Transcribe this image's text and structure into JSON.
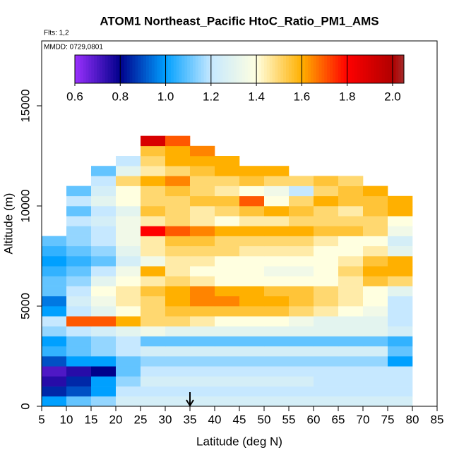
{
  "chart_data": {
    "type": "heatmap",
    "title": "ATOM1 Northeast_Pacific HtoC_Ratio_PM1_AMS",
    "subtitle": "Flts: 1,2",
    "annotation": "MMDD: 0729,0801",
    "x_label": "Latitude (deg N)",
    "y_label": "Altitude (m)",
    "xlim": [
      5,
      85
    ],
    "xticks": [
      5,
      10,
      15,
      20,
      25,
      30,
      35,
      40,
      45,
      50,
      55,
      60,
      65,
      70,
      75,
      80,
      85
    ],
    "ylim": [
      0,
      18240
    ],
    "yticks": [
      0,
      5000,
      10000,
      15000
    ],
    "arrow_x": 35,
    "x_edges": [
      5,
      10,
      15,
      20,
      25,
      30,
      35,
      40,
      45,
      50,
      55,
      60,
      65,
      70,
      75,
      80
    ],
    "y_edges": [
      0,
      500,
      1000,
      1500,
      2000,
      2500,
      3000,
      3500,
      4000,
      4500,
      5000,
      5500,
      6000,
      6500,
      7000,
      7500,
      8000,
      8500,
      9000,
      9500,
      10000,
      10500,
      11000,
      11500,
      12000,
      12500,
      13000,
      13500
    ],
    "z": [
      [
        1.0,
        1.1,
        1.15,
        1.25,
        1.25,
        1.25,
        1.25,
        1.25,
        1.25,
        1.25,
        1.25,
        1.25,
        1.25,
        1.25,
        1.25
      ],
      [
        0.85,
        0.9,
        1.0,
        1.2,
        1.2,
        1.2,
        1.2,
        1.2,
        1.2,
        1.2,
        1.2,
        1.2,
        1.2,
        1.2,
        1.2
      ],
      [
        0.75,
        0.85,
        1.0,
        1.15,
        1.25,
        1.25,
        1.25,
        1.25,
        1.25,
        1.25,
        1.25,
        1.2,
        1.2,
        1.2,
        1.2
      ],
      [
        0.7,
        0.75,
        0.8,
        1.1,
        1.2,
        1.2,
        1.2,
        1.2,
        1.2,
        1.2,
        1.2,
        1.2,
        1.2,
        1.2,
        1.2
      ],
      [
        0.9,
        1.0,
        1.0,
        1.1,
        1.15,
        1.15,
        1.15,
        1.15,
        1.15,
        1.15,
        1.15,
        1.15,
        1.15,
        1.15,
        1.0
      ],
      [
        1.05,
        1.1,
        1.15,
        1.2,
        1.25,
        1.25,
        1.25,
        1.25,
        1.25,
        1.25,
        1.25,
        1.25,
        1.25,
        1.25,
        1.1
      ],
      [
        1.0,
        1.1,
        1.15,
        1.2,
        1.1,
        1.1,
        1.1,
        1.1,
        1.1,
        1.1,
        1.1,
        1.1,
        1.1,
        1.1,
        1.05
      ],
      [
        1.15,
        1.2,
        1.25,
        1.3,
        1.35,
        1.3,
        1.3,
        1.3,
        1.3,
        1.3,
        1.3,
        1.3,
        1.3,
        1.3,
        1.25
      ],
      [
        1.2,
        1.7,
        1.7,
        1.6,
        1.5,
        1.5,
        1.45,
        1.4,
        1.4,
        1.4,
        1.35,
        1.3,
        1.3,
        1.3,
        1.2
      ],
      [
        1.0,
        1.2,
        1.3,
        1.4,
        1.5,
        1.55,
        1.55,
        1.55,
        1.55,
        1.55,
        1.5,
        1.45,
        1.4,
        1.35,
        1.2
      ],
      [
        0.95,
        1.25,
        1.35,
        1.45,
        1.5,
        1.6,
        1.65,
        1.65,
        1.6,
        1.6,
        1.55,
        1.5,
        1.45,
        1.4,
        1.2
      ],
      [
        1.1,
        1.2,
        1.4,
        1.45,
        1.55,
        1.6,
        1.65,
        1.6,
        1.6,
        1.55,
        1.55,
        1.5,
        1.45,
        1.4,
        1.3
      ],
      [
        1.1,
        1.15,
        1.3,
        1.4,
        1.45,
        1.5,
        1.45,
        1.4,
        1.4,
        1.4,
        1.4,
        1.4,
        1.45,
        1.55,
        1.5
      ],
      [
        1.05,
        1.1,
        1.2,
        1.35,
        1.6,
        1.45,
        1.4,
        1.4,
        1.4,
        1.35,
        1.35,
        1.4,
        1.5,
        1.6,
        1.6
      ],
      [
        1.0,
        1.05,
        1.1,
        1.25,
        1.35,
        1.45,
        1.45,
        1.4,
        1.4,
        1.4,
        1.4,
        1.4,
        1.45,
        1.55,
        1.6
      ],
      [
        1.05,
        1.1,
        1.15,
        1.3,
        1.45,
        1.5,
        1.5,
        1.5,
        1.45,
        1.45,
        1.45,
        1.4,
        1.4,
        1.45,
        1.3
      ],
      [
        1.1,
        1.15,
        1.2,
        1.35,
        1.45,
        1.55,
        1.55,
        1.5,
        1.5,
        1.5,
        1.5,
        1.45,
        1.4,
        1.4,
        1.25
      ],
      [
        null,
        1.15,
        1.2,
        1.35,
        1.8,
        1.7,
        1.65,
        1.6,
        1.6,
        1.6,
        1.6,
        1.55,
        1.55,
        1.5,
        1.35
      ],
      [
        null,
        1.2,
        1.25,
        1.35,
        1.45,
        1.5,
        1.45,
        1.4,
        1.45,
        1.45,
        1.5,
        1.5,
        1.5,
        1.5,
        1.4
      ],
      [
        null,
        1.1,
        1.2,
        1.3,
        1.55,
        1.5,
        1.45,
        1.5,
        1.55,
        1.6,
        1.55,
        1.5,
        1.45,
        1.55,
        1.6
      ],
      [
        null,
        1.2,
        1.3,
        1.4,
        1.5,
        1.5,
        1.55,
        1.55,
        1.7,
        1.4,
        1.5,
        1.6,
        1.55,
        1.55,
        1.6
      ],
      [
        null,
        1.1,
        1.25,
        1.4,
        1.5,
        1.55,
        1.5,
        1.45,
        1.4,
        1.35,
        1.2,
        1.5,
        1.55,
        1.6,
        null
      ],
      [
        null,
        null,
        1.2,
        1.5,
        1.6,
        1.65,
        1.5,
        1.5,
        1.55,
        1.5,
        1.5,
        1.55,
        1.5,
        null,
        null
      ],
      [
        null,
        null,
        1.1,
        1.3,
        1.45,
        1.5,
        1.55,
        1.6,
        1.6,
        1.6,
        null,
        null,
        null,
        null,
        null
      ],
      [
        null,
        null,
        null,
        1.2,
        1.5,
        1.6,
        1.6,
        1.6,
        null,
        null,
        null,
        null,
        null,
        null,
        null
      ],
      [
        null,
        null,
        null,
        null,
        1.55,
        1.6,
        1.65,
        null,
        null,
        null,
        null,
        null,
        null,
        null,
        null
      ],
      [
        null,
        null,
        null,
        null,
        1.9,
        1.7,
        null,
        null,
        null,
        null,
        null,
        null,
        null,
        null,
        null
      ]
    ],
    "clim": [
      0.6,
      2.05
    ],
    "cticks": [
      0.6,
      0.8,
      {
        "value": 1,
        "label": "1.0"
      },
      1.2,
      1.4,
      1.6,
      1.8,
      {
        "value": 2,
        "label": "2.0"
      }
    ],
    "colorscale": [
      [
        0.6,
        "#9b30ff"
      ],
      [
        0.8,
        "#00008b"
      ],
      [
        1.0,
        "#00a0ff"
      ],
      [
        1.2,
        "#c6e8ff"
      ],
      [
        1.4,
        "#ffffe0"
      ],
      [
        1.6,
        "#ffb000"
      ],
      [
        1.8,
        "#ff0000"
      ],
      [
        2.0,
        "#b00000"
      ],
      [
        2.05,
        "#a52a2a"
      ]
    ]
  }
}
